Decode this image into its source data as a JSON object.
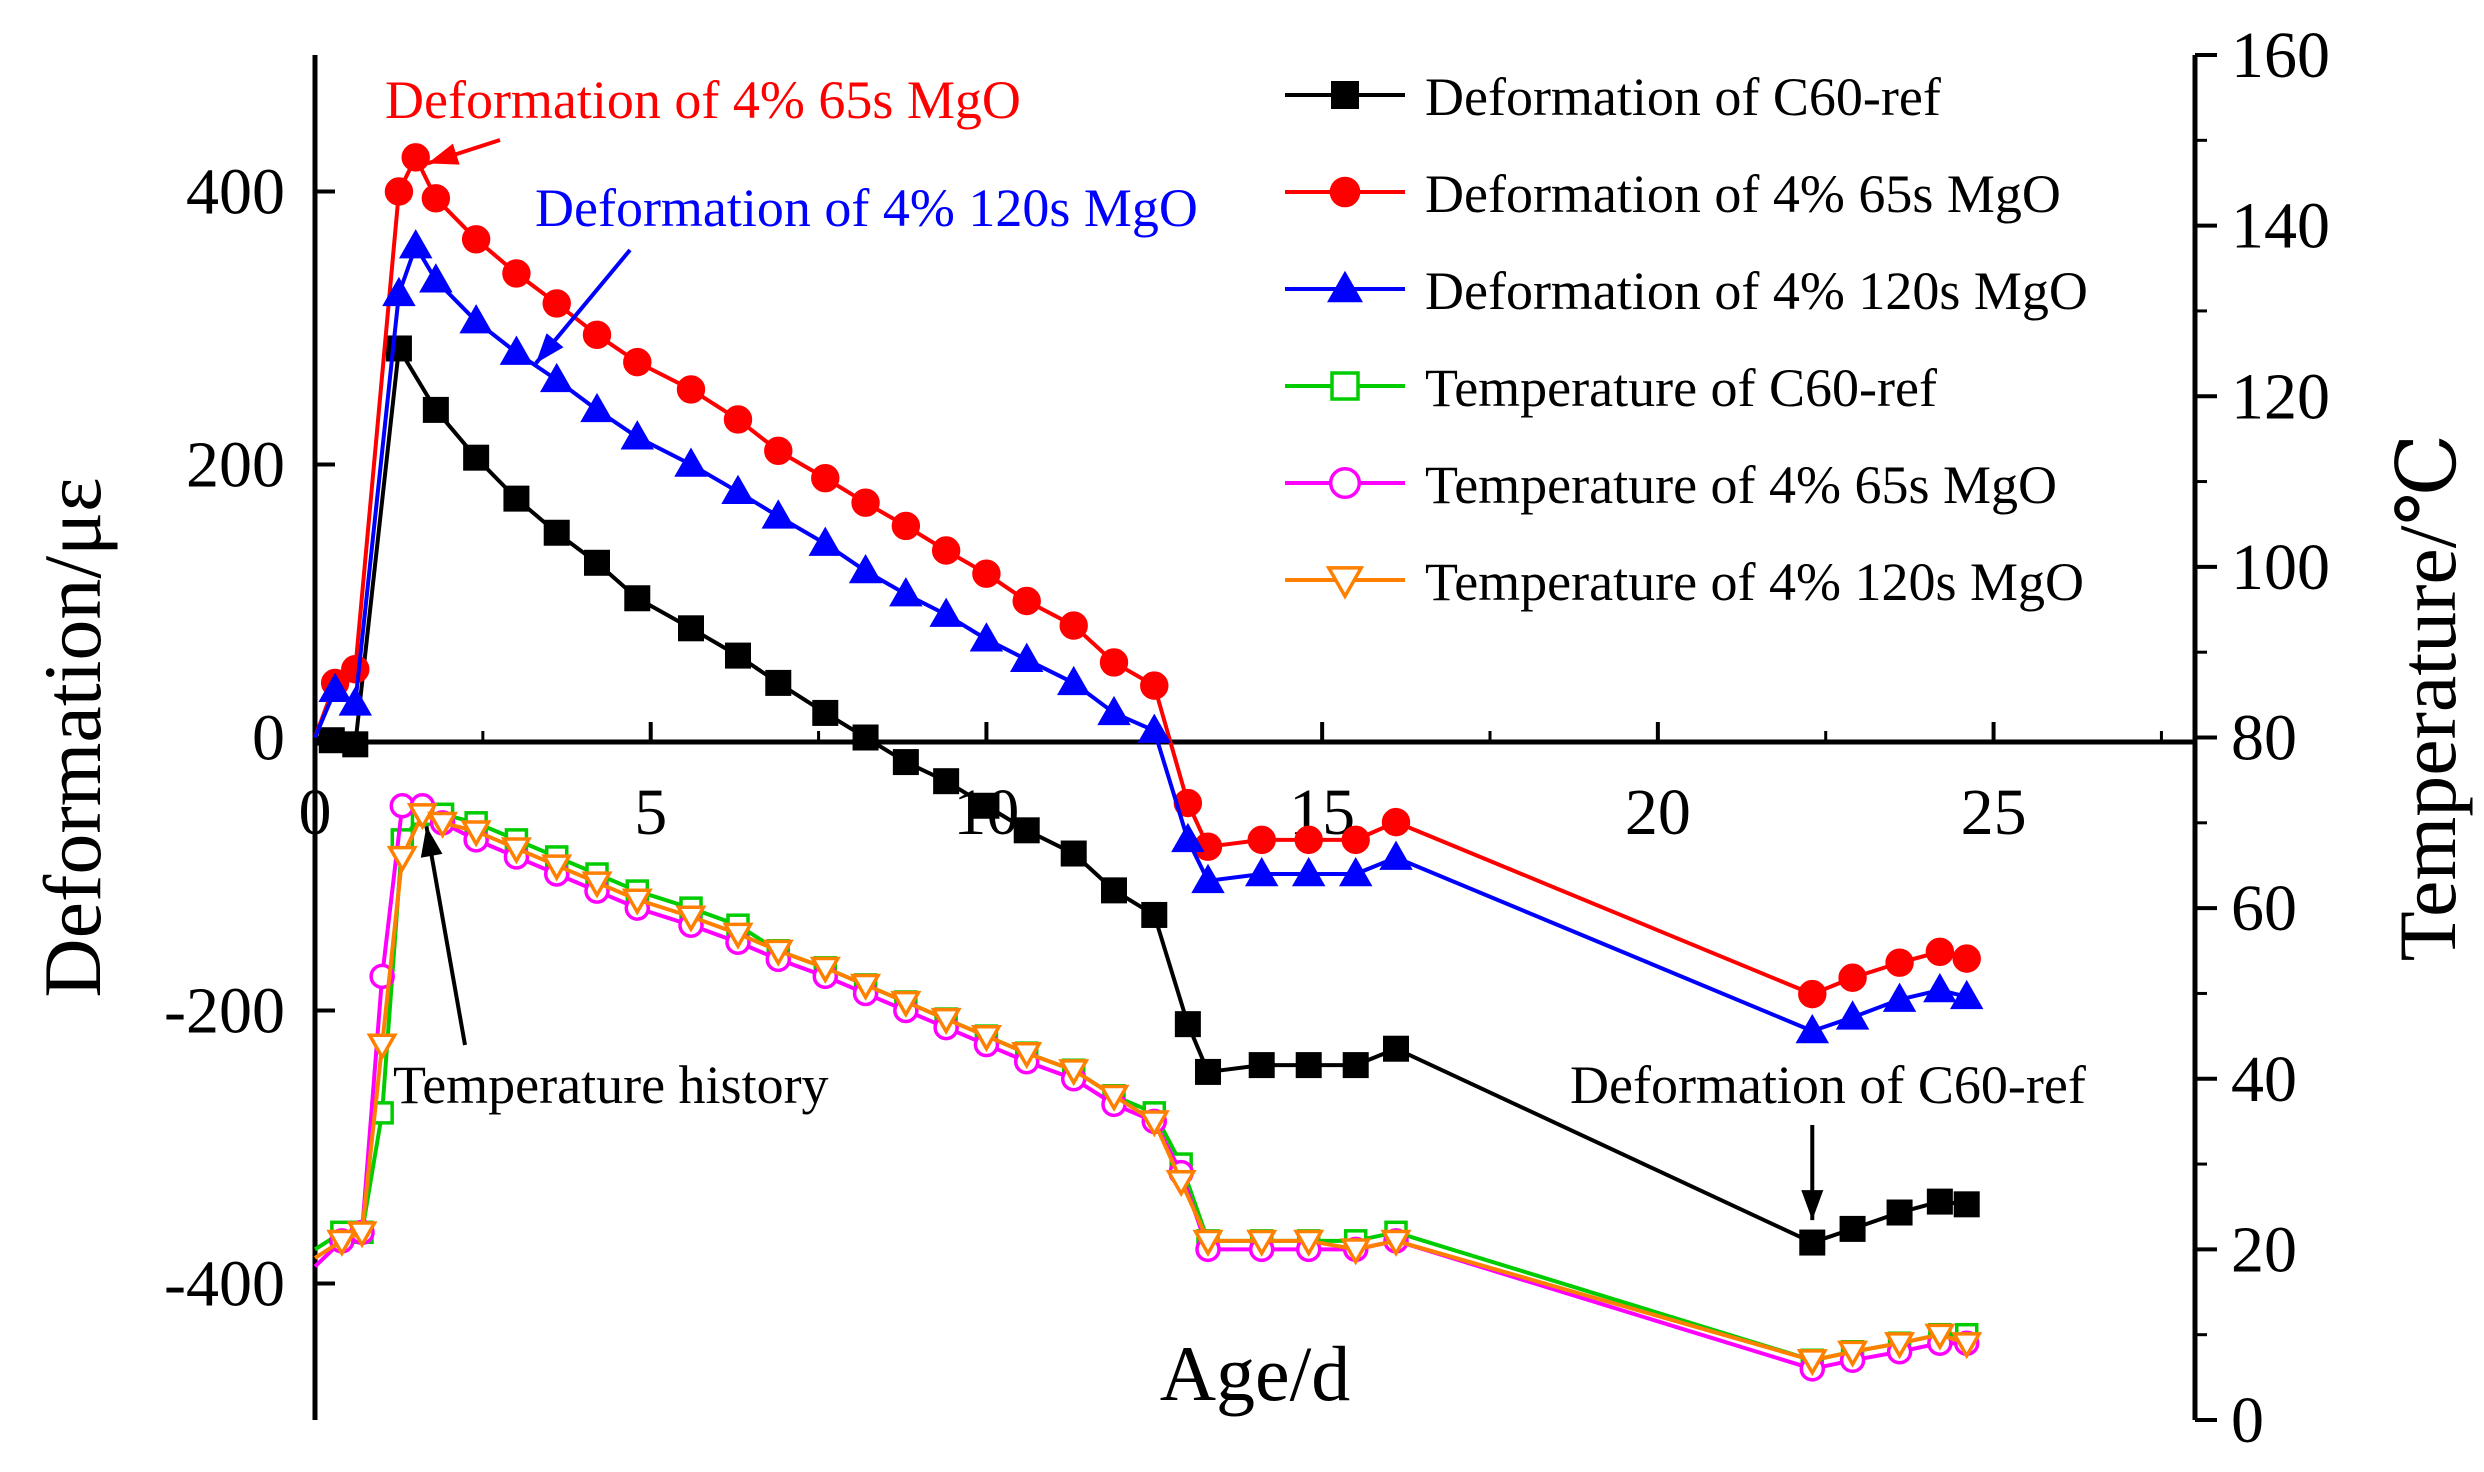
{
  "chart_data": {
    "type": "line",
    "title": "",
    "xlabel": "Age/d",
    "ylabel_left": "Deformation/με",
    "ylabel_right": "Temperature/℃",
    "xlim": [
      0,
      28
    ],
    "ylim_left": [
      -500,
      500
    ],
    "ylim_right": [
      0,
      160
    ],
    "x_ticks": [
      0,
      5,
      10,
      15,
      20,
      25
    ],
    "y_left_ticks": [
      -400,
      -200,
      0,
      200,
      400
    ],
    "y_right_ticks": [
      0,
      20,
      40,
      60,
      80,
      100,
      120,
      140,
      160
    ],
    "legend_position": "top-right",
    "series": [
      {
        "name": "Deformation of C60-ref",
        "axis": "left",
        "color": "#000000",
        "marker": "square",
        "filled": true,
        "x": [
          0,
          0.25,
          0.6,
          1.25,
          1.8,
          2.4,
          3.0,
          3.6,
          4.2,
          4.8,
          5.6,
          6.3,
          6.9,
          7.6,
          8.2,
          8.8,
          9.4,
          10.0,
          10.6,
          11.3,
          11.9,
          12.5,
          13.0,
          13.3,
          14.1,
          14.8,
          15.5,
          16.1,
          22.3,
          22.9,
          23.6,
          24.2,
          24.6
        ],
        "y": [
          -5,
          -2,
          -5,
          285,
          240,
          205,
          175,
          150,
          128,
          102,
          80,
          60,
          40,
          18,
          0,
          -18,
          -32,
          -50,
          -68,
          -85,
          -112,
          -130,
          -210,
          -245,
          -240,
          -240,
          -240,
          -228,
          -370,
          -360,
          -348,
          -340,
          -342
        ]
      },
      {
        "name": "Deformation of 4% 65s MgO",
        "axis": "left",
        "color": "#ff0000",
        "marker": "circle",
        "filled": true,
        "x": [
          0,
          0.3,
          0.6,
          1.25,
          1.5,
          1.8,
          2.4,
          3.0,
          3.6,
          4.2,
          4.8,
          5.6,
          6.3,
          6.9,
          7.6,
          8.2,
          8.8,
          9.4,
          10.0,
          10.6,
          11.3,
          11.9,
          12.5,
          13.0,
          13.3,
          14.1,
          14.8,
          15.5,
          16.1,
          22.3,
          22.9,
          23.6,
          24.2,
          24.6
        ],
        "y": [
          0,
          40,
          50,
          400,
          425,
          395,
          365,
          340,
          318,
          295,
          275,
          255,
          233,
          210,
          190,
          172,
          155,
          137,
          120,
          100,
          82,
          55,
          38,
          -48,
          -80,
          -75,
          -75,
          -75,
          -62,
          -188,
          -176,
          -165,
          -157,
          -162
        ]
      },
      {
        "name": "Deformation of 4% 120s MgO",
        "axis": "left",
        "color": "#0000ff",
        "marker": "triangle-up",
        "filled": true,
        "x": [
          0,
          0.3,
          0.6,
          1.25,
          1.5,
          1.8,
          2.4,
          3.0,
          3.6,
          4.2,
          4.8,
          5.6,
          6.3,
          6.9,
          7.6,
          8.2,
          8.8,
          9.4,
          10.0,
          10.6,
          11.3,
          11.9,
          12.5,
          13.0,
          13.3,
          14.1,
          14.8,
          15.5,
          16.1,
          22.3,
          22.9,
          23.6,
          24.2,
          24.6
        ],
        "y": [
          0,
          35,
          25,
          325,
          360,
          335,
          305,
          282,
          262,
          240,
          220,
          200,
          180,
          162,
          142,
          122,
          105,
          90,
          72,
          57,
          40,
          18,
          5,
          -75,
          -105,
          -100,
          -100,
          -100,
          -88,
          -215,
          -205,
          -192,
          -185,
          -190
        ]
      },
      {
        "name": "Temperature of C60-ref",
        "axis": "right",
        "color": "#00cc00",
        "marker": "square",
        "filled": false,
        "x": [
          0,
          0.4,
          0.7,
          1.0,
          1.3,
          1.6,
          1.9,
          2.4,
          3.0,
          3.6,
          4.2,
          4.8,
          5.6,
          6.3,
          6.9,
          7.6,
          8.2,
          8.8,
          9.4,
          10.0,
          10.6,
          11.3,
          11.9,
          12.5,
          12.9,
          13.3,
          14.1,
          14.8,
          15.5,
          16.1,
          22.3,
          22.9,
          23.6,
          24.2,
          24.6
        ],
        "y": [
          20,
          22,
          22,
          36,
          68,
          71,
          71,
          70,
          68,
          66,
          64,
          62,
          60,
          58,
          55,
          53,
          51,
          49,
          47,
          45,
          43,
          41,
          38,
          36,
          30,
          21,
          21,
          21,
          21,
          22,
          7,
          8,
          9,
          10,
          10
        ]
      },
      {
        "name": "Temperature of 4% 65s MgO",
        "axis": "right",
        "color": "#ff00ff",
        "marker": "circle",
        "filled": false,
        "x": [
          0,
          0.4,
          0.7,
          1.0,
          1.3,
          1.6,
          1.9,
          2.4,
          3.0,
          3.6,
          4.2,
          4.8,
          5.6,
          6.3,
          6.9,
          7.6,
          8.2,
          8.8,
          9.4,
          10.0,
          10.6,
          11.3,
          11.9,
          12.5,
          12.9,
          13.3,
          14.1,
          14.8,
          15.5,
          16.1,
          22.3,
          22.9,
          23.6,
          24.2,
          24.6
        ],
        "y": [
          18,
          21,
          22,
          52,
          72,
          72,
          70,
          68,
          66,
          64,
          62,
          60,
          58,
          56,
          54,
          52,
          50,
          48,
          46,
          44,
          42,
          40,
          37,
          35,
          29,
          20,
          20,
          20,
          20,
          21,
          6,
          7,
          8,
          9,
          9
        ]
      },
      {
        "name": "Temperature of 4% 120s MgO",
        "axis": "right",
        "color": "#ff8000",
        "marker": "triangle-down",
        "filled": false,
        "x": [
          0,
          0.4,
          0.7,
          1.0,
          1.3,
          1.6,
          1.9,
          2.4,
          3.0,
          3.6,
          4.2,
          4.8,
          5.6,
          6.3,
          6.9,
          7.6,
          8.2,
          8.8,
          9.4,
          10.0,
          10.6,
          11.3,
          11.9,
          12.5,
          12.9,
          13.3,
          14.1,
          14.8,
          15.5,
          16.1,
          22.3,
          22.9,
          23.6,
          24.2,
          24.6
        ],
        "y": [
          19,
          21,
          22,
          44,
          66,
          71,
          70,
          69,
          67,
          65,
          63,
          61,
          59,
          57,
          55,
          53,
          51,
          49,
          47,
          45,
          43,
          41,
          38,
          35,
          28,
          21,
          21,
          21,
          20,
          21,
          7,
          8,
          9,
          10,
          9
        ]
      }
    ],
    "annotations": [
      {
        "name": "annot-red",
        "text": "Deformation of 4% 65s MgO",
        "color": "#ff0000",
        "target_x": 1.5,
        "target_y": 425,
        "axis": "left"
      },
      {
        "name": "annot-blue",
        "text": "Deformation of 4% 120s MgO",
        "color": "#0000ff",
        "target_x": 3.2,
        "target_y": 280,
        "axis": "left"
      },
      {
        "name": "annot-temp",
        "text": "Temperature history",
        "color": "#000000",
        "target_x": 1.6,
        "target_y": 71,
        "axis": "right"
      },
      {
        "name": "annot-black",
        "text": "Deformation of C60-ref",
        "color": "#000000",
        "target_x": 22.3,
        "target_y": -358,
        "axis": "left"
      }
    ]
  }
}
